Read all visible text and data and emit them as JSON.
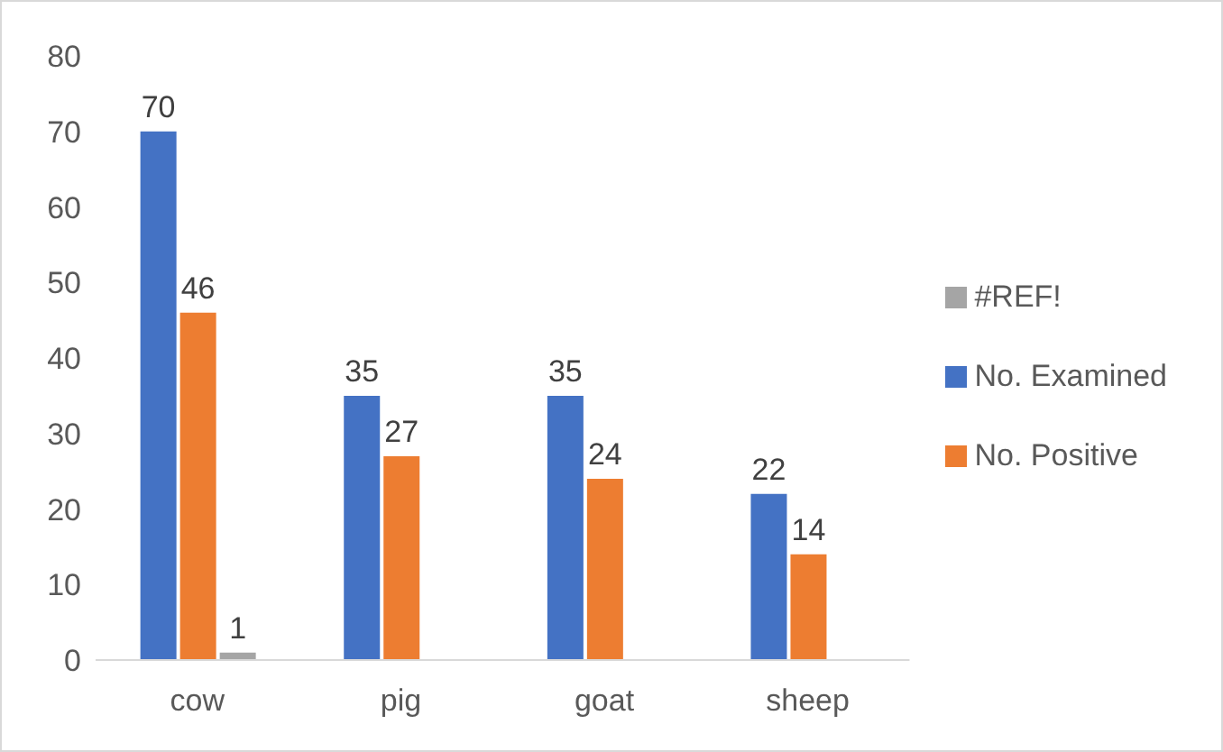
{
  "chart_data": {
    "type": "bar",
    "categories": [
      "cow",
      "pig",
      "goat",
      "sheep"
    ],
    "series": [
      {
        "name": "No. Examined",
        "color": "#4472c4",
        "values": [
          70,
          35,
          35,
          22
        ]
      },
      {
        "name": "No. Positive",
        "color": "#ed7d31",
        "values": [
          46,
          27,
          24,
          14
        ]
      },
      {
        "name": "#REF!",
        "color": "#a5a5a5",
        "values": [
          1,
          null,
          null,
          null
        ]
      }
    ],
    "ylim": [
      0,
      80
    ],
    "yticks": [
      0,
      10,
      20,
      30,
      40,
      50,
      60,
      70,
      80
    ],
    "grid": false,
    "legend": "right",
    "data_labels": true
  }
}
